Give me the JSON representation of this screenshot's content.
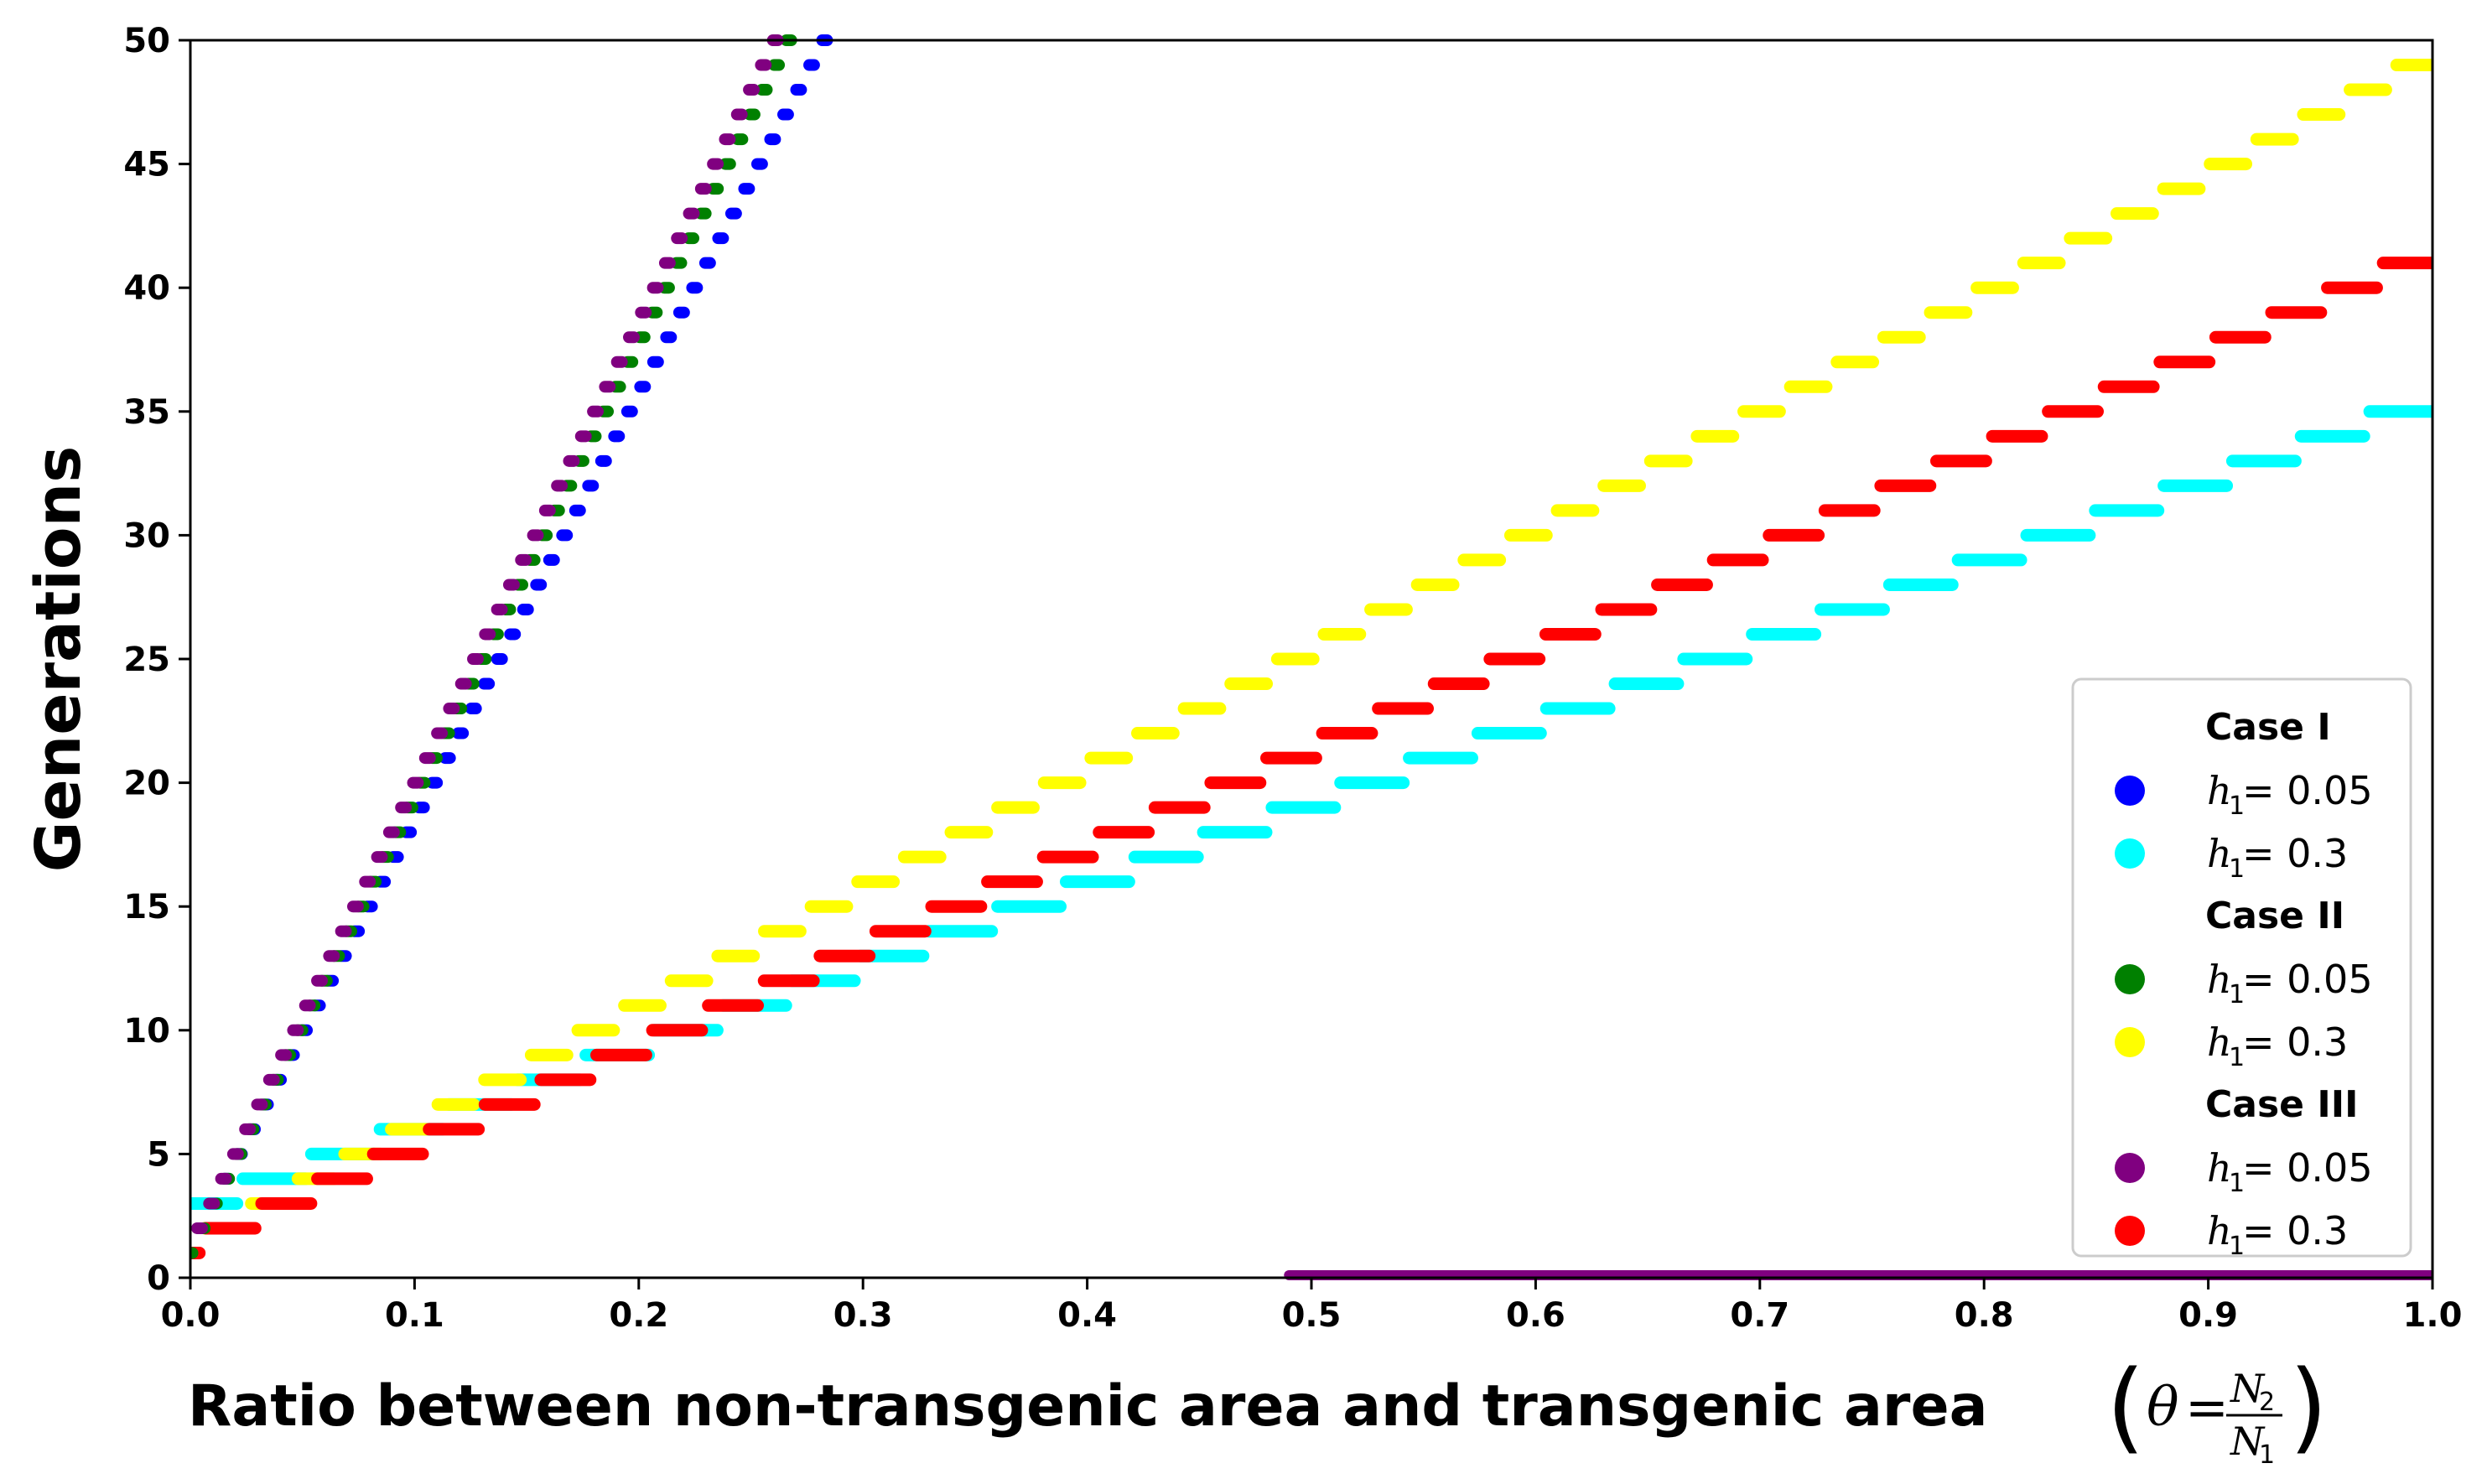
{
  "chart_data": {
    "type": "scatter",
    "xlabel_text": "Ratio between non-transgenic area and transgenic area",
    "xlabel_math": {
      "theta": "θ",
      "eq": "=",
      "num": "N",
      "num_sub": "2",
      "den": "N",
      "den_sub": "1"
    },
    "ylabel": "Generations",
    "xlim": [
      0,
      1
    ],
    "ylim": [
      0,
      50
    ],
    "xticks": [
      "0.0",
      "0.1",
      "0.2",
      "0.3",
      "0.4",
      "0.5",
      "0.6",
      "0.7",
      "0.8",
      "0.9",
      "1.0"
    ],
    "yticks": [
      "0",
      "5",
      "10",
      "15",
      "20",
      "25",
      "30",
      "35",
      "40",
      "45",
      "50"
    ],
    "legend": {
      "position": "lower-right",
      "groups": [
        {
          "title": "Case I",
          "entries": [
            {
              "label_var": "h",
              "label_sub": "1",
              "label_eq": " = 0.05",
              "color": "#0000ff"
            },
            {
              "label_var": "h",
              "label_sub": "1",
              "label_eq": " = 0.3",
              "color": "#00ffff"
            }
          ]
        },
        {
          "title": "Case II",
          "entries": [
            {
              "label_var": "h",
              "label_sub": "1",
              "label_eq": " = 0.05",
              "color": "#008000"
            },
            {
              "label_var": "h",
              "label_sub": "1",
              "label_eq": " = 0.3",
              "color": "#ffff00"
            }
          ]
        },
        {
          "title": "Case III",
          "entries": [
            {
              "label_var": "h",
              "label_sub": "1",
              "label_eq": " = 0.05",
              "color": "#800080"
            },
            {
              "label_var": "h",
              "label_sub": "1",
              "label_eq": " = 0.3",
              "color": "#ff0000"
            }
          ]
        }
      ]
    },
    "series": [
      {
        "case": "Case I",
        "h1": 0.05,
        "color": "#0000ff",
        "gen_start": 1,
        "gen_end": 50,
        "theta_at_gen_end": 0.284,
        "theta_per_gen": 0.0058,
        "segment_width": 0.0022
      },
      {
        "case": "Case II",
        "h1": 0.05,
        "color": "#008000",
        "gen_start": 1,
        "gen_end": 50,
        "theta_at_gen_end": 0.268,
        "theta_per_gen": 0.00545,
        "segment_width": 0.0022
      },
      {
        "case": "Case III",
        "h1": 0.05,
        "color": "#800080",
        "gen_start": 1,
        "gen_end": 50,
        "theta_at_gen_end": 0.262,
        "theta_per_gen": 0.00535,
        "segment_width": 0.0022,
        "zero_band": [
          0.49,
          1.0
        ]
      },
      {
        "case": "Case I",
        "h1": 0.3,
        "color": "#00ffff",
        "gen_start": 1,
        "gen_end": 35,
        "theta_at_gen_end": 1.0,
        "theta_per_gen": 0.0306,
        "segment_width": 0.028
      },
      {
        "case": "Case II",
        "h1": 0.3,
        "color": "#ffff00",
        "gen_start": 1,
        "gen_end": 49,
        "theta_at_gen_end": 1.0,
        "theta_per_gen": 0.0208,
        "segment_width": 0.016
      },
      {
        "case": "Case III",
        "h1": 0.3,
        "color": "#ff0000",
        "gen_start": 1,
        "gen_end": 41,
        "theta_at_gen_end": 1.0,
        "theta_per_gen": 0.0249,
        "segment_width": 0.022
      }
    ]
  }
}
